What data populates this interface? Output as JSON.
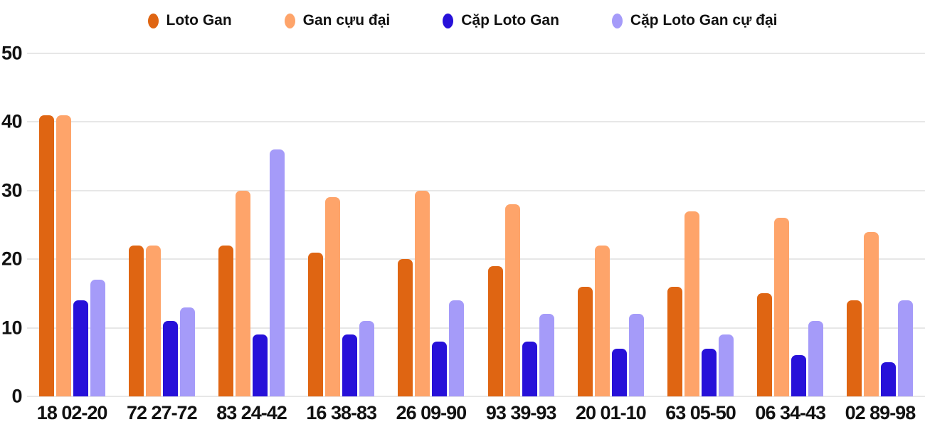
{
  "chart_data": {
    "type": "bar",
    "title": "",
    "xlabel": "",
    "ylabel": "",
    "ylim": [
      0,
      50
    ],
    "yticks": [
      0,
      10,
      20,
      30,
      40,
      50
    ],
    "grid": true,
    "legend_position": "top",
    "grid_color": "#e7e7e7",
    "text_color": "#111111",
    "categories": [
      "18 02-20",
      "72 27-72",
      "83 24-42",
      "16 38-83",
      "26 09-90",
      "93 39-93",
      "20 01-10",
      "63 05-50",
      "06 34-43",
      "02 89-98"
    ],
    "series": [
      {
        "name": "Loto Gan",
        "color": "#df6512",
        "values": [
          41,
          22,
          22,
          21,
          20,
          19,
          16,
          16,
          15,
          14
        ]
      },
      {
        "name": "Gan cựu đại",
        "color": "#fea46a",
        "values": [
          41,
          22,
          30,
          29,
          30,
          28,
          22,
          27,
          26,
          24
        ]
      },
      {
        "name": "Cặp Loto Gan",
        "color": "#2711d9",
        "values": [
          14,
          11,
          9,
          9,
          8,
          8,
          7,
          7,
          6,
          5
        ]
      },
      {
        "name": "Cặp Loto Gan cự đại",
        "color": "#a59bf9",
        "values": [
          17,
          13,
          36,
          11,
          14,
          12,
          12,
          9,
          11,
          14
        ]
      }
    ]
  }
}
